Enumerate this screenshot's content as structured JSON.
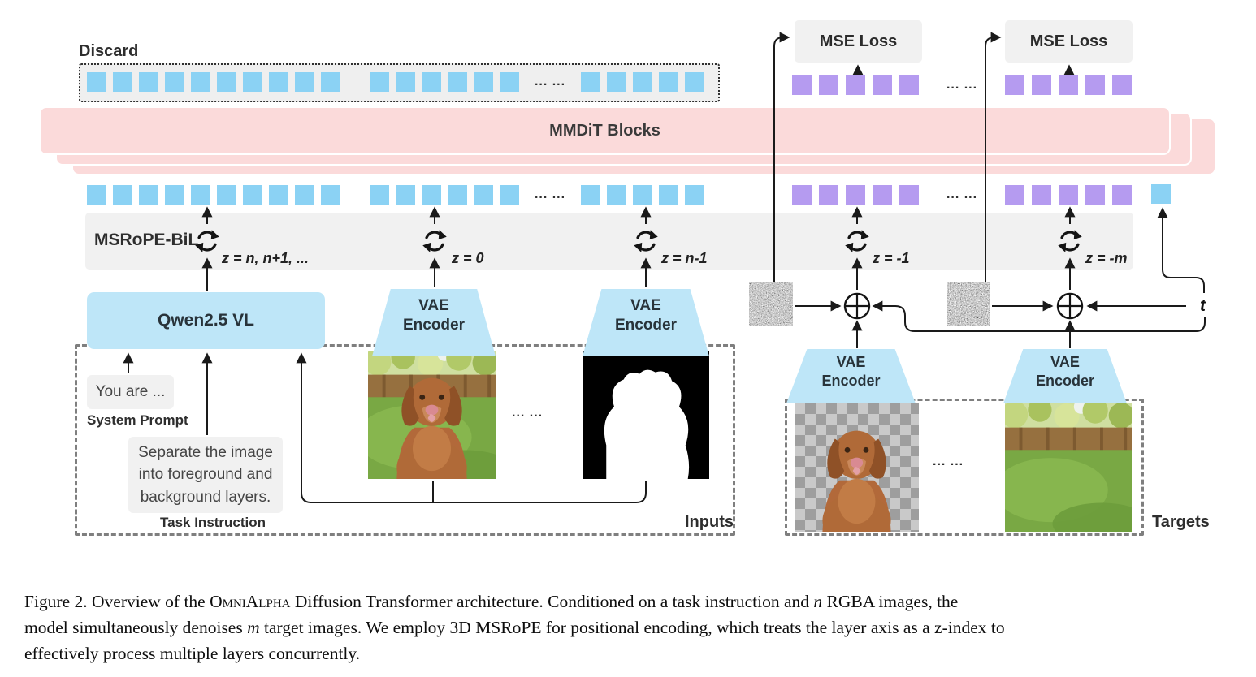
{
  "diagram": {
    "discard_label": "Discard",
    "mmdit_label": "MMDiT Blocks",
    "msrope_label": "MSRoPE-BiL",
    "qwen_label": "Qwen2.5 VL",
    "vae_line1": "VAE",
    "vae_line2": "Encoder",
    "mse_label": "MSE Loss",
    "t_label": "t",
    "dots": "... ...",
    "system_prompt_text": "You are ...",
    "system_prompt_label": "System Prompt",
    "task_text": "Separate the image into foreground and background layers.",
    "task_label": "Task Instruction",
    "inputs_label": "Inputs",
    "targets_label": "Targets",
    "z_labels": [
      "z = n, n+1, ...",
      "z = 0",
      "z = n-1",
      "z = -1",
      "z = -m"
    ]
  },
  "colors": {
    "token_blue": "#8BD2F4",
    "token_purple": "#B59BF0",
    "block_pink": "#FBDADA",
    "panel_gray": "#F1F1F1",
    "box_blue": "#BEE6F8"
  },
  "token_rows": {
    "discard": {
      "gap": 8,
      "items": [
        {
          "sq": 10,
          "c": "blue"
        },
        {
          "sp": 20
        },
        {
          "sq": 6,
          "c": "blue"
        },
        {
          "dots": 60
        },
        {
          "sq": 5,
          "c": "blue"
        }
      ]
    },
    "main_blue": {
      "gap": 8,
      "items": [
        {
          "sq": 10,
          "c": "blue"
        },
        {
          "sp": 20
        },
        {
          "sq": 6,
          "c": "blue"
        },
        {
          "dots": 60
        },
        {
          "sq": 5,
          "c": "blue"
        }
      ]
    },
    "mse_row": {
      "gap": 9,
      "items": [
        {
          "sq": 5,
          "c": "purple"
        },
        {
          "dots": 88
        },
        {
          "sq": 5,
          "c": "purple"
        }
      ]
    },
    "main_purple": {
      "gap": 9,
      "items": [
        {
          "sq": 5,
          "c": "purple"
        },
        {
          "dots": 88
        },
        {
          "sq": 5,
          "c": "purple"
        }
      ]
    }
  },
  "caption": {
    "segments": [
      {
        "t": "Figure 2. Overview of the "
      },
      {
        "t": "OmniAlpha",
        "cls": "sc"
      },
      {
        "t": " Diffusion Transformer architecture. Conditioned on a task instruction and "
      },
      {
        "t": "n",
        "cls": "mi"
      },
      {
        "t": " RGBA images, the",
        "br": true
      },
      {
        "t": "model simultaneously denoises "
      },
      {
        "t": "m",
        "cls": "mi"
      },
      {
        "t": " target images. We employ 3D MSRoPE for positional encoding, which treats the layer axis as a z-index to",
        "br": true
      },
      {
        "t": "effectively process multiple layers concurrently."
      }
    ]
  }
}
